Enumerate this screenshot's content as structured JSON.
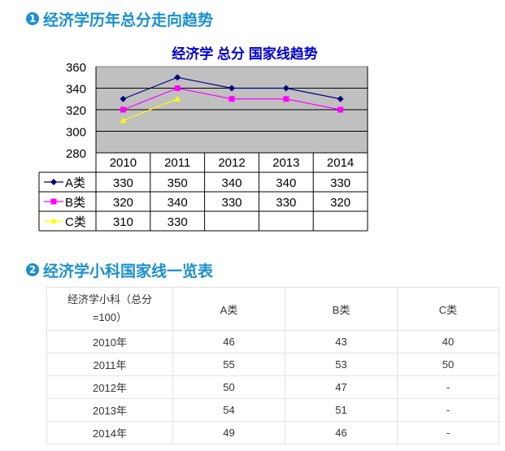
{
  "sections": [
    {
      "number": "1",
      "title": "经济学历年总分走向趋势"
    },
    {
      "number": "2",
      "title": "经济学小科国家线一览表"
    }
  ],
  "chart_data": {
    "type": "line",
    "title": "经济学  总分  国家线趋势",
    "categories": [
      "2010",
      "2011",
      "2012",
      "2013",
      "2014"
    ],
    "ylim": [
      280,
      360
    ],
    "y_ticks": [
      "280",
      "300",
      "320",
      "340",
      "360"
    ],
    "grid": true,
    "plot_bg": "#c0c0c0",
    "series": [
      {
        "name": "A类",
        "color": "#000080",
        "marker": "diamond",
        "values": [
          330,
          350,
          340,
          340,
          330
        ]
      },
      {
        "name": "B类",
        "color": "#ff00ff",
        "marker": "square",
        "values": [
          320,
          340,
          330,
          330,
          320
        ]
      },
      {
        "name": "C类",
        "color": "#ffff00",
        "marker": "triangle",
        "values": [
          310,
          330,
          null,
          null,
          null
        ]
      }
    ],
    "table": [
      [
        "330",
        "350",
        "340",
        "340",
        "330"
      ],
      [
        "320",
        "340",
        "330",
        "330",
        "320"
      ],
      [
        "310",
        "330",
        "",
        "",
        ""
      ]
    ]
  },
  "table2": {
    "header_first": [
      "经济学小科（总分",
      "=100）"
    ],
    "headers": [
      "A类",
      "B类",
      "C类"
    ],
    "rows": [
      [
        "2010年",
        "46",
        "43",
        "40"
      ],
      [
        "2011年",
        "55",
        "53",
        "50"
      ],
      [
        "2012年",
        "50",
        "47",
        "-"
      ],
      [
        "2013年",
        "54",
        "51",
        "-"
      ],
      [
        "2014年",
        "49",
        "46",
        "-"
      ]
    ]
  }
}
